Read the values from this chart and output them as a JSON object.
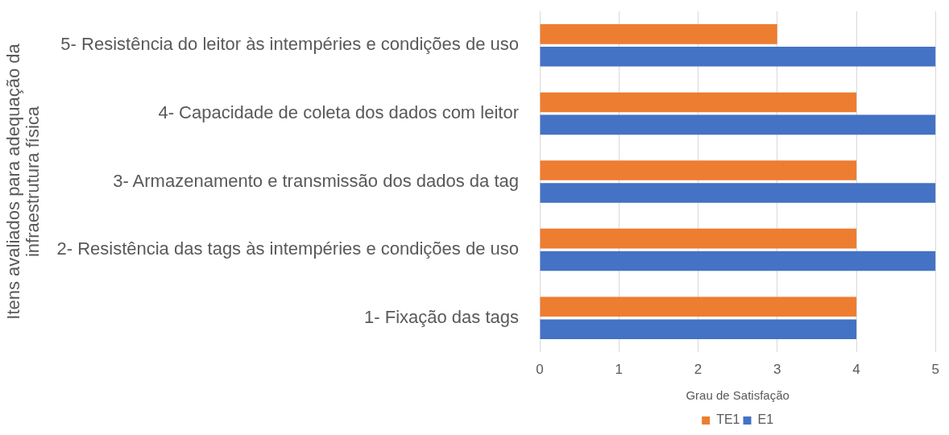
{
  "chart_data": {
    "type": "bar",
    "orientation": "horizontal",
    "categories": [
      "5- Resistência do leitor às intempéries e condições de uso",
      "4- Capacidade de coleta dos dados com leitor",
      "3- Armazenamento e transmissão dos dados da tag",
      "2- Resistência das tags às intempéries e condições de uso",
      "1- Fixação das tags"
    ],
    "series": [
      {
        "name": "TE1",
        "color": "#ed7d31",
        "values": [
          3,
          4,
          4,
          4,
          4
        ]
      },
      {
        "name": "E1",
        "color": "#4472c4",
        "values": [
          5,
          5,
          5,
          5,
          4
        ]
      }
    ],
    "xlim": [
      0,
      5
    ],
    "xticks": [
      0,
      1,
      2,
      3,
      4,
      5
    ],
    "xlabel": "Grau de Satisfação",
    "ylabel": "Itens avaliados para adequação da infraestrutura física",
    "grid": "x",
    "legend": "bottom"
  }
}
